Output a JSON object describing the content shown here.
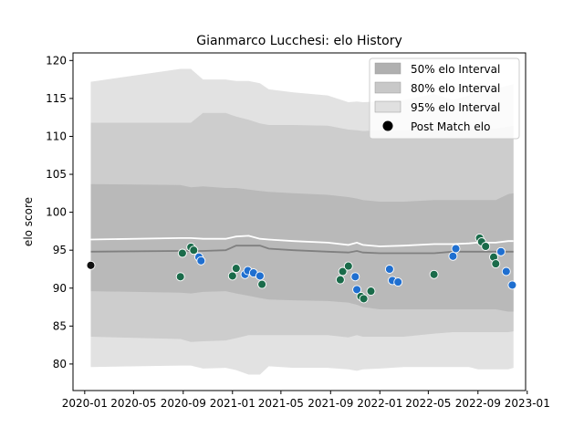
{
  "chart_data": {
    "type": "scatter",
    "title": "Gianmarco Lucchesi: elo History",
    "xlabel": "",
    "ylabel": "elo score",
    "xlim": [
      "2019-12-03",
      "2022-12-28"
    ],
    "ylim": [
      76.5,
      121
    ],
    "x_ticks": [
      "2020-01",
      "2020-05",
      "2020-09",
      "2021-01",
      "2021-05",
      "2021-09",
      "2022-01",
      "2022-05",
      "2022-09",
      "2023-01"
    ],
    "y_ticks": [
      80,
      85,
      90,
      95,
      100,
      105,
      110,
      115,
      120
    ],
    "grid": false,
    "legend_position": "top-right",
    "legend": [
      {
        "label": "50% elo Interval",
        "kind": "band",
        "color": "#b0b0b0"
      },
      {
        "label": "80% elo Interval",
        "kind": "band",
        "color": "#c8c8c8"
      },
      {
        "label": "95% elo Interval",
        "kind": "band",
        "color": "#e0e0e0"
      },
      {
        "label": "Post Match elo",
        "kind": "marker",
        "color": "#000000"
      }
    ],
    "colors": {
      "band95": "#e2e2e2",
      "band80": "#cdcdcd",
      "band50": "#b9b9b9",
      "median_line": "#808080",
      "mean_line": "#ffffff",
      "win_marker": "#1a6b4a",
      "loss_marker": "#1f6fd0",
      "first_marker": "#111111"
    },
    "band_x": [
      "2020-01-16",
      "2020-08-25",
      "2020-09-20",
      "2020-10-20",
      "2020-12-15",
      "2021-01-10",
      "2021-02-10",
      "2021-03-10",
      "2021-04-01",
      "2021-06-01",
      "2021-08-25",
      "2021-10-15",
      "2021-11-05",
      "2021-11-20",
      "2022-01-01",
      "2022-03-01",
      "2022-05-15",
      "2022-07-01",
      "2022-08-10",
      "2022-09-01",
      "2022-10-15",
      "2022-11-15",
      "2022-11-28"
    ],
    "band95_upper": [
      117.2,
      118.9,
      118.9,
      117.5,
      117.5,
      117.3,
      117.3,
      117.0,
      116.2,
      115.8,
      115.4,
      114.5,
      114.6,
      114.5,
      114.6,
      114.8,
      115.6,
      114.8,
      115.4,
      117.1,
      116.3,
      116.7,
      116.9
    ],
    "band95_lower": [
      79.6,
      79.8,
      79.8,
      79.4,
      79.5,
      79.2,
      78.6,
      78.6,
      79.7,
      79.5,
      79.5,
      79.3,
      79.1,
      79.3,
      79.4,
      79.6,
      79.6,
      79.6,
      79.6,
      79.3,
      79.3,
      79.3,
      79.5
    ],
    "band80_upper": [
      111.8,
      111.8,
      111.8,
      113.1,
      113.1,
      112.6,
      112.2,
      111.7,
      111.5,
      111.5,
      111.4,
      110.9,
      110.8,
      110.7,
      110.8,
      110.8,
      111.0,
      111.0,
      111.0,
      111.0,
      111.0,
      111.3,
      111.4
    ],
    "band80_lower": [
      83.6,
      83.3,
      82.9,
      83.0,
      83.1,
      83.4,
      83.8,
      83.8,
      83.8,
      83.8,
      83.8,
      83.5,
      83.8,
      83.6,
      83.6,
      83.6,
      84.0,
      84.2,
      84.2,
      84.2,
      84.2,
      84.2,
      84.3
    ],
    "band50_upper": [
      103.7,
      103.6,
      103.3,
      103.4,
      103.2,
      103.2,
      103.0,
      102.8,
      102.7,
      102.5,
      102.3,
      102.0,
      101.8,
      101.6,
      101.4,
      101.4,
      101.6,
      101.6,
      101.6,
      101.6,
      101.6,
      102.4,
      102.5
    ],
    "band50_lower": [
      89.6,
      89.4,
      89.3,
      89.5,
      89.6,
      89.3,
      89.0,
      88.7,
      88.5,
      88.4,
      88.3,
      88.1,
      87.8,
      87.5,
      87.2,
      87.2,
      87.2,
      87.2,
      87.2,
      87.2,
      87.2,
      86.9,
      86.9
    ],
    "median_line": [
      94.8,
      94.9,
      94.9,
      94.9,
      95.0,
      95.6,
      95.6,
      95.6,
      95.2,
      95.0,
      94.8,
      94.7,
      94.9,
      94.7,
      94.6,
      94.6,
      94.6,
      94.8,
      94.8,
      94.8,
      94.8,
      94.8,
      94.8
    ],
    "mean_line": [
      96.4,
      96.6,
      96.6,
      96.5,
      96.5,
      96.8,
      96.9,
      96.5,
      96.4,
      96.2,
      96.0,
      95.7,
      96.0,
      95.7,
      95.5,
      95.6,
      95.8,
      95.8,
      95.9,
      96.0,
      96.0,
      96.2,
      96.2
    ],
    "points": [
      {
        "x": "2020-01-16",
        "y": 93.0,
        "result": "first"
      },
      {
        "x": "2020-08-25",
        "y": 91.5,
        "result": "win"
      },
      {
        "x": "2020-08-30",
        "y": 94.6,
        "result": "win"
      },
      {
        "x": "2020-09-20",
        "y": 95.4,
        "result": "win"
      },
      {
        "x": "2020-09-27",
        "y": 95.0,
        "result": "win"
      },
      {
        "x": "2020-10-10",
        "y": 94.1,
        "result": "loss"
      },
      {
        "x": "2020-10-15",
        "y": 93.6,
        "result": "loss"
      },
      {
        "x": "2021-01-01",
        "y": 91.6,
        "result": "win"
      },
      {
        "x": "2021-01-10",
        "y": 92.6,
        "result": "win"
      },
      {
        "x": "2021-02-01",
        "y": 91.8,
        "result": "loss"
      },
      {
        "x": "2021-02-08",
        "y": 92.3,
        "result": "loss"
      },
      {
        "x": "2021-02-22",
        "y": 92.0,
        "result": "loss"
      },
      {
        "x": "2021-03-10",
        "y": 91.6,
        "result": "loss"
      },
      {
        "x": "2021-03-15",
        "y": 90.5,
        "result": "win"
      },
      {
        "x": "2021-09-25",
        "y": 91.1,
        "result": "win"
      },
      {
        "x": "2021-10-01",
        "y": 92.2,
        "result": "win"
      },
      {
        "x": "2021-10-15",
        "y": 92.9,
        "result": "win"
      },
      {
        "x": "2021-11-01",
        "y": 91.5,
        "result": "loss"
      },
      {
        "x": "2021-11-05",
        "y": 89.8,
        "result": "loss"
      },
      {
        "x": "2021-11-15",
        "y": 88.9,
        "result": "win"
      },
      {
        "x": "2021-11-22",
        "y": 88.6,
        "result": "win"
      },
      {
        "x": "2021-12-10",
        "y": 89.6,
        "result": "win"
      },
      {
        "x": "2022-01-25",
        "y": 92.5,
        "result": "loss"
      },
      {
        "x": "2022-02-01",
        "y": 91.0,
        "result": "loss"
      },
      {
        "x": "2022-02-15",
        "y": 90.8,
        "result": "loss"
      },
      {
        "x": "2022-05-15",
        "y": 91.8,
        "result": "win"
      },
      {
        "x": "2022-07-01",
        "y": 94.2,
        "result": "loss"
      },
      {
        "x": "2022-07-08",
        "y": 95.2,
        "result": "loss"
      },
      {
        "x": "2022-09-05",
        "y": 96.6,
        "result": "win"
      },
      {
        "x": "2022-09-10",
        "y": 96.1,
        "result": "win"
      },
      {
        "x": "2022-09-20",
        "y": 95.5,
        "result": "win"
      },
      {
        "x": "2022-10-10",
        "y": 94.1,
        "result": "win"
      },
      {
        "x": "2022-10-15",
        "y": 93.2,
        "result": "win"
      },
      {
        "x": "2022-10-28",
        "y": 94.8,
        "result": "loss"
      },
      {
        "x": "2022-11-10",
        "y": 92.2,
        "result": "loss"
      },
      {
        "x": "2022-11-25",
        "y": 90.4,
        "result": "loss"
      }
    ]
  }
}
